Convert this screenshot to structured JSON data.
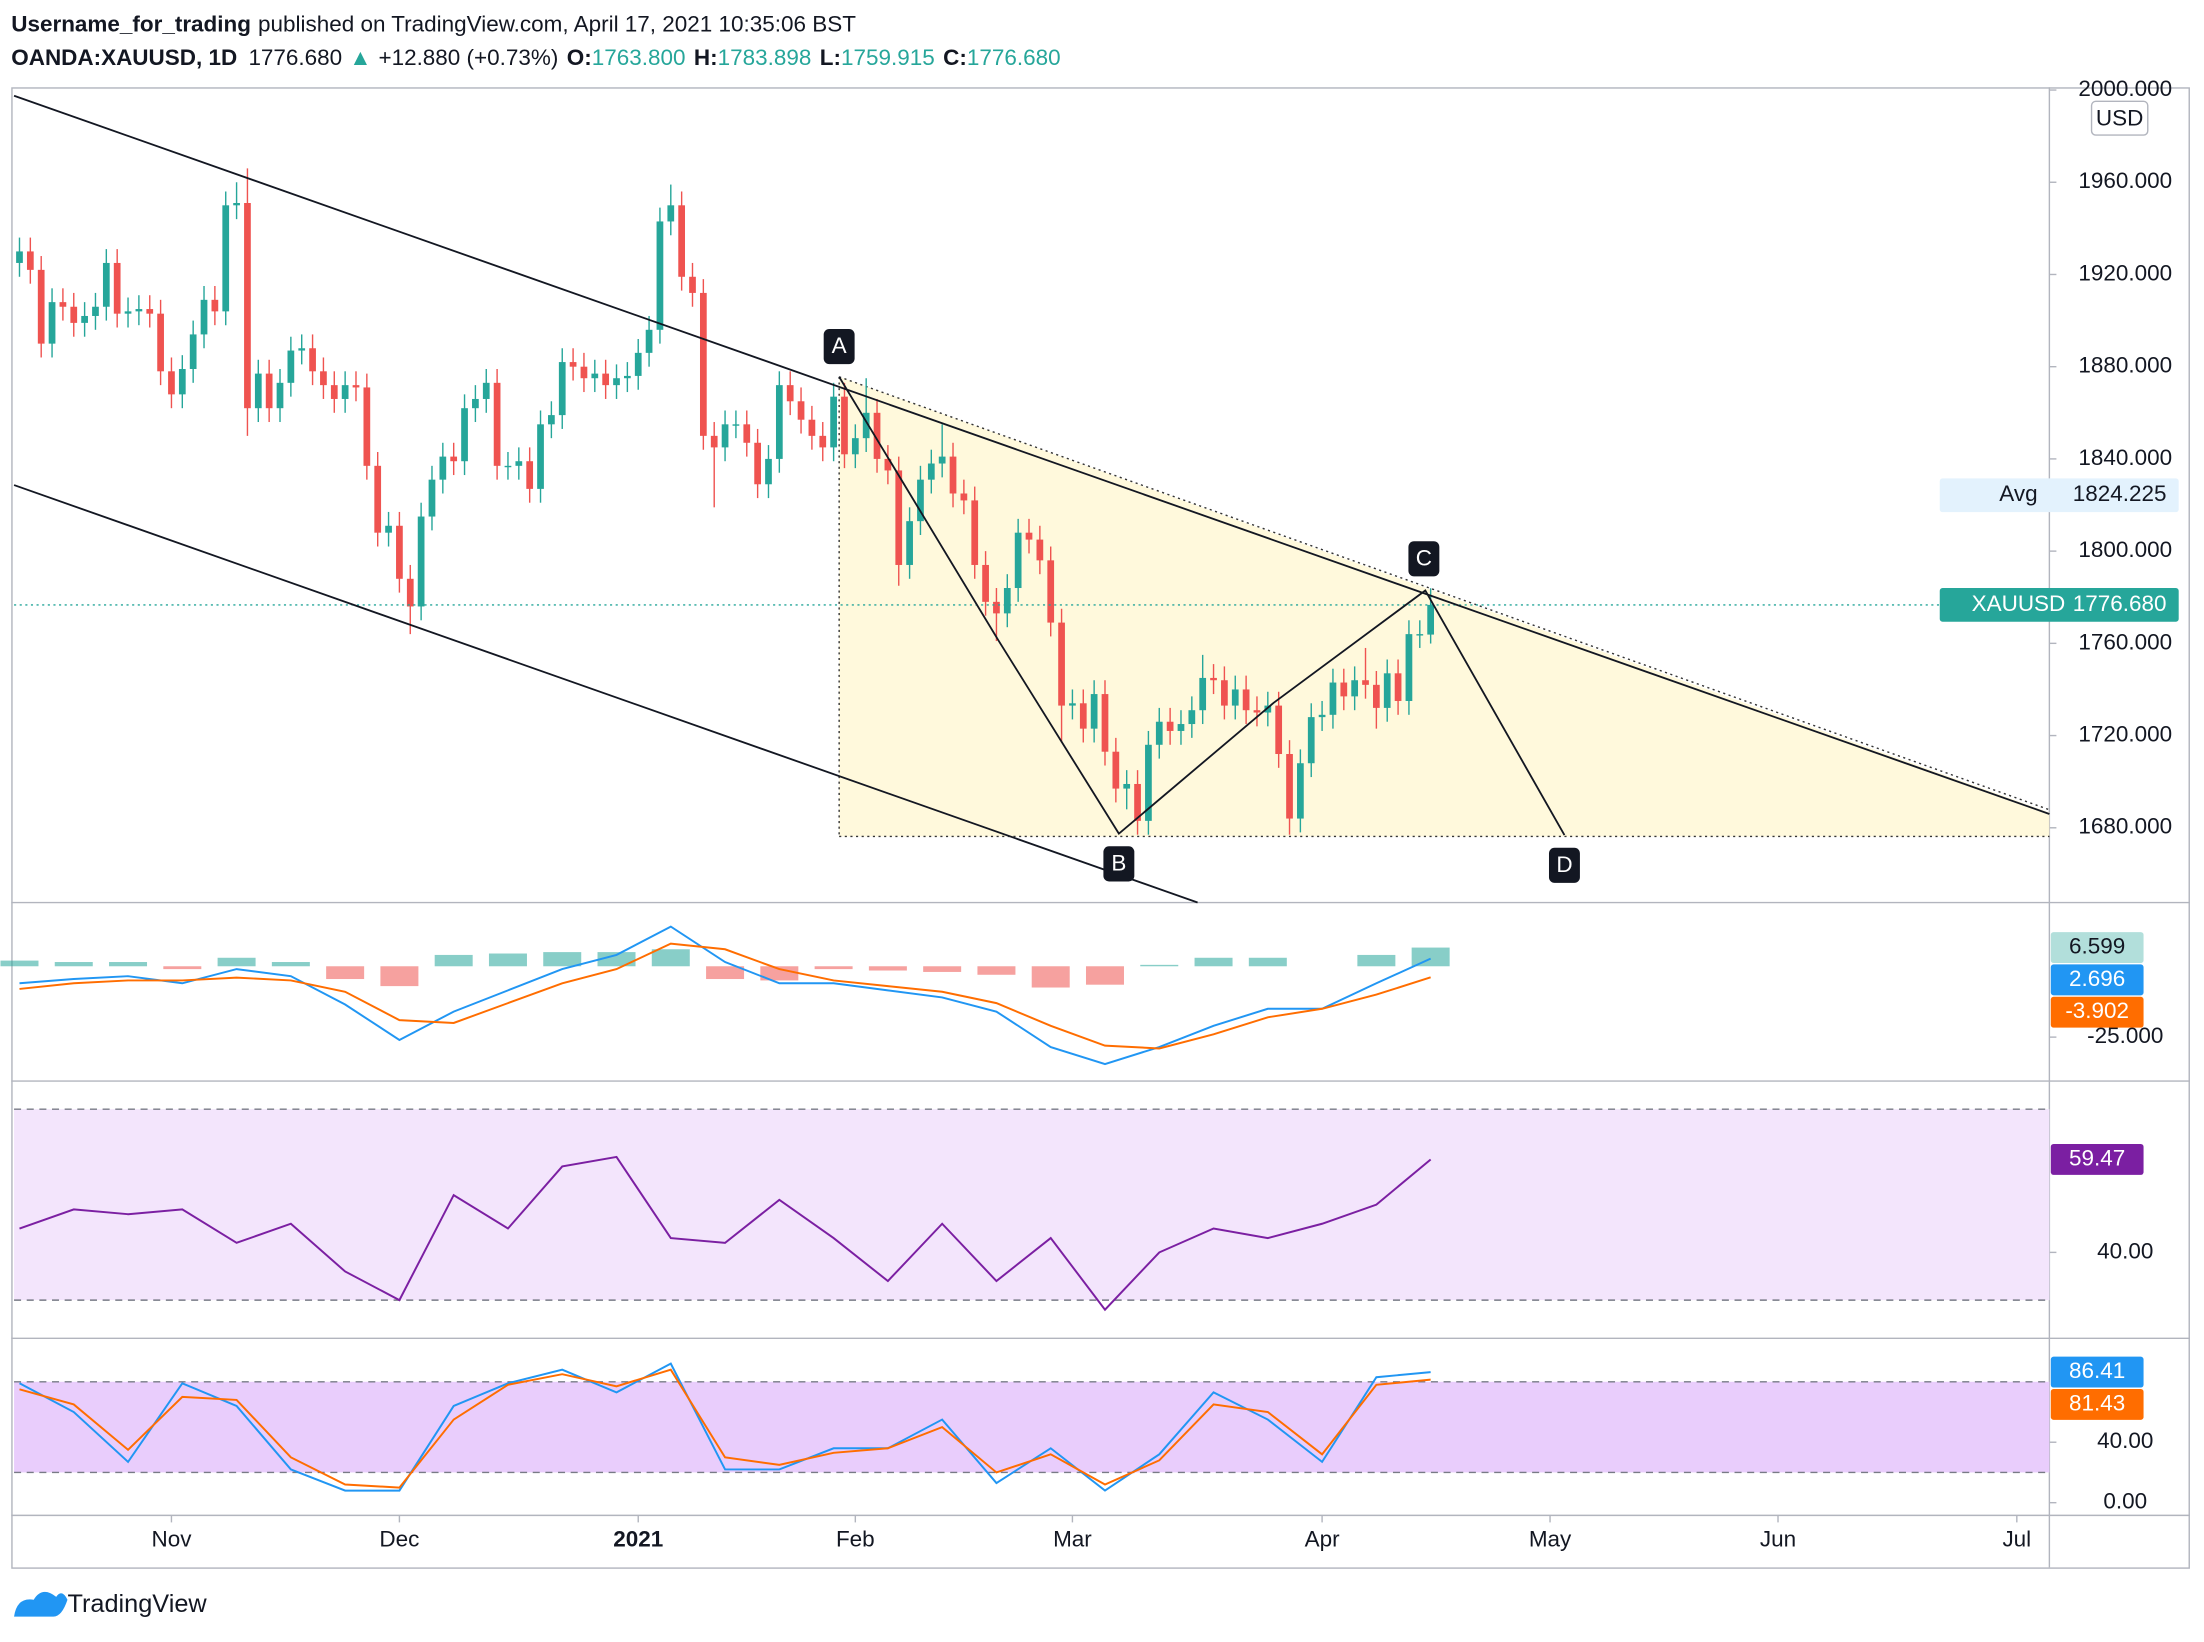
{
  "header": {
    "user": "Username_for_trading",
    "published": "published on TradingView.com, April 17, 2021 10:35:06 BST",
    "symbol": "OANDA:XAUUSD, 1D",
    "last": "1776.680",
    "arrow": "▲",
    "change": "+12.880 (+0.73%)",
    "o_label": "O:",
    "o": "1763.800",
    "h_label": "H:",
    "h": "1783.898",
    "l_label": "L:",
    "l": "1759.915",
    "c_label": "C:",
    "c": "1776.680"
  },
  "footer": "TradingView",
  "chart_data": [
    {
      "type": "candlestick",
      "currency": "USD",
      "up_color": "#26a69a",
      "down_color": "#ef5350",
      "annotations": [
        "A",
        "B",
        "C",
        "D"
      ],
      "xlim": [
        -0.5,
        187
      ],
      "xticks": [
        {
          "value": 14,
          "label": "Nov"
        },
        {
          "value": 35,
          "label": "Dec"
        },
        {
          "value": 57,
          "label": "2021"
        },
        {
          "value": 77,
          "label": "Feb"
        },
        {
          "value": 97,
          "label": "Mar"
        },
        {
          "value": 120,
          "label": "Apr"
        },
        {
          "value": 141,
          "label": "May"
        },
        {
          "value": 162,
          "label": "Jun"
        },
        {
          "value": 184,
          "label": "Jul"
        }
      ],
      "ylim": [
        1648.8,
        2001.2
      ],
      "yticks": [
        {
          "value": 1680,
          "label": "1680.000"
        },
        {
          "value": 1720,
          "label": "1720.000"
        },
        {
          "value": 1760,
          "label": "1760.000"
        },
        {
          "value": 1800,
          "label": "1800.000"
        },
        {
          "value": 1840,
          "label": "1840.000"
        },
        {
          "value": 1880,
          "label": "1880.000"
        },
        {
          "value": 1920,
          "label": "1920.000"
        },
        {
          "value": 1960,
          "label": "1960.000"
        },
        {
          "value": 2000,
          "label": "2000.000"
        }
      ],
      "price_lines": [
        {
          "label": "Avg",
          "value": 1824.225,
          "value_label": "1824.225",
          "color": "#e3f2fd",
          "text_color": "#131722",
          "line": false
        },
        {
          "label": "XAUUSD",
          "value": 1776.68,
          "value_label": "1776.680",
          "color": "#26a69a",
          "text_color": "#ffffff",
          "line": true
        }
      ],
      "open": [
        1925,
        1930,
        1922,
        1890,
        1908,
        1906,
        1899,
        1902,
        1906,
        1925,
        1903,
        1904,
        1905,
        1903,
        1878,
        1868,
        1879,
        1894,
        1909,
        1904,
        1950,
        1951,
        1862,
        1877,
        1862,
        1873,
        1887,
        1888,
        1878,
        1872,
        1866,
        1872,
        1871,
        1837,
        1808,
        1811,
        1788,
        1776,
        1815,
        1831,
        1841,
        1839,
        1862,
        1866,
        1873,
        1837,
        1837,
        1839,
        1827,
        1855,
        1859,
        1882,
        1880,
        1875,
        1877,
        1872,
        1875,
        1876,
        1886,
        1896,
        1943,
        1950,
        1919,
        1912,
        1850,
        1845,
        1855,
        1855,
        1847,
        1829,
        1840,
        1872,
        1865,
        1857,
        1850,
        1845,
        1867,
        1842,
        1849,
        1860,
        1840,
        1835,
        1794,
        1813,
        1831,
        1838,
        1841,
        1825,
        1822,
        1794,
        1778,
        1773,
        1784,
        1808,
        1805,
        1796,
        1769,
        1733,
        1734,
        1723,
        1738,
        1713,
        1697,
        1699,
        1683,
        1716,
        1726,
        1722,
        1725,
        1731,
        1745,
        1744,
        1733,
        1740,
        1731,
        1730,
        1733,
        1712,
        1684,
        1708,
        1728,
        1729,
        1743,
        1737,
        1744,
        1742,
        1732,
        1747,
        1735,
        1764,
        1763.8
      ],
      "high": [
        1936,
        1936,
        1928,
        1914,
        1914,
        1912,
        1908,
        1912,
        1931,
        1931,
        1910,
        1911,
        1911,
        1909,
        1884,
        1885,
        1900,
        1915,
        1915,
        1956,
        1960,
        1966,
        1883,
        1883,
        1879,
        1893,
        1894,
        1894,
        1884,
        1878,
        1878,
        1878,
        1877,
        1843,
        1817,
        1817,
        1794,
        1821,
        1837,
        1847,
        1847,
        1868,
        1872,
        1879,
        1879,
        1843,
        1845,
        1845,
        1861,
        1865,
        1888,
        1888,
        1886,
        1883,
        1883,
        1881,
        1882,
        1892,
        1902,
        1949,
        1959,
        1956,
        1925,
        1918,
        1856,
        1861,
        1861,
        1861,
        1853,
        1846,
        1878,
        1878,
        1871,
        1863,
        1856,
        1873,
        1873,
        1855,
        1875,
        1866,
        1846,
        1841,
        1819,
        1837,
        1844,
        1855,
        1847,
        1831,
        1828,
        1800,
        1784,
        1790,
        1814,
        1814,
        1811,
        1802,
        1775,
        1740,
        1740,
        1744,
        1744,
        1719,
        1705,
        1705,
        1722,
        1732,
        1732,
        1731,
        1737,
        1755,
        1751,
        1750,
        1746,
        1746,
        1737,
        1739,
        1739,
        1718,
        1714,
        1734,
        1735,
        1749,
        1749,
        1750,
        1758,
        1748,
        1753,
        1753,
        1770,
        1770,
        1783.898
      ],
      "low": [
        1919,
        1916,
        1884,
        1884,
        1900,
        1893,
        1893,
        1896,
        1900,
        1897,
        1897,
        1898,
        1897,
        1872,
        1862,
        1862,
        1873,
        1888,
        1898,
        1898,
        1944,
        1850,
        1856,
        1856,
        1856,
        1867,
        1881,
        1872,
        1866,
        1860,
        1860,
        1865,
        1831,
        1802,
        1802,
        1782,
        1764,
        1770,
        1809,
        1825,
        1833,
        1833,
        1856,
        1860,
        1831,
        1831,
        1831,
        1821,
        1821,
        1849,
        1853,
        1874,
        1869,
        1869,
        1866,
        1866,
        1869,
        1870,
        1880,
        1890,
        1937,
        1913,
        1906,
        1844,
        1819,
        1839,
        1849,
        1841,
        1823,
        1823,
        1834,
        1859,
        1851,
        1844,
        1839,
        1839,
        1836,
        1836,
        1843,
        1834,
        1829,
        1785,
        1788,
        1807,
        1825,
        1832,
        1819,
        1816,
        1788,
        1772,
        1761,
        1767,
        1778,
        1799,
        1790,
        1763,
        1717,
        1727,
        1717,
        1717,
        1707,
        1691,
        1688,
        1677,
        1677,
        1710,
        1716,
        1716,
        1719,
        1725,
        1738,
        1727,
        1727,
        1725,
        1724,
        1724,
        1706,
        1677,
        1678,
        1702,
        1722,
        1723,
        1731,
        1731,
        1736,
        1723,
        1726,
        1729,
        1729,
        1758,
        1759.915
      ],
      "close": [
        1930,
        1922,
        1890,
        1908,
        1906,
        1899,
        1902,
        1906,
        1925,
        1903,
        1904,
        1905,
        1903,
        1878,
        1868,
        1879,
        1894,
        1909,
        1904,
        1950,
        1951,
        1862,
        1877,
        1862,
        1873,
        1887,
        1888,
        1878,
        1872,
        1866,
        1872,
        1871,
        1837,
        1808,
        1811,
        1788,
        1776,
        1815,
        1831,
        1841,
        1839,
        1862,
        1866,
        1873,
        1837,
        1837,
        1839,
        1827,
        1855,
        1859,
        1882,
        1880,
        1875,
        1877,
        1872,
        1875,
        1876,
        1886,
        1896,
        1943,
        1950,
        1919,
        1912,
        1850,
        1845,
        1855,
        1855,
        1847,
        1829,
        1840,
        1872,
        1865,
        1857,
        1850,
        1845,
        1867,
        1842,
        1849,
        1860,
        1840,
        1835,
        1794,
        1813,
        1831,
        1838,
        1841,
        1825,
        1822,
        1794,
        1778,
        1773,
        1784,
        1808,
        1805,
        1796,
        1769,
        1733,
        1734,
        1723,
        1738,
        1713,
        1697,
        1699,
        1683,
        1716,
        1726,
        1722,
        1725,
        1731,
        1745,
        1744,
        1733,
        1740,
        1731,
        1730,
        1733,
        1712,
        1684,
        1708,
        1728,
        1729,
        1743,
        1737,
        1744,
        1742,
        1732,
        1747,
        1735,
        1764,
        1764,
        1776.68
      ]
    },
    {
      "type": "macd",
      "ylim": [
        -40,
        21.5
      ],
      "yticks": [
        {
          "value": -25,
          "label": "-25.000"
        }
      ],
      "x": [
        0,
        5,
        10,
        15,
        20,
        25,
        30,
        35,
        40,
        45,
        50,
        55,
        60,
        65,
        70,
        75,
        80,
        85,
        90,
        95,
        100,
        105,
        110,
        115,
        120,
        125,
        130
      ],
      "histogram": {
        "up_color": "#26a69a",
        "down_color": "#ef5350",
        "label_color": "#b2dfdb",
        "label_text_color": "#131722",
        "last_label": "6.599",
        "values": [
          2,
          1.5,
          1.5,
          -1,
          3,
          1.5,
          -4.5,
          -7,
          4,
          4.5,
          5,
          5,
          6,
          -4.5,
          -5,
          -1,
          -1.5,
          -2,
          -3,
          -7.5,
          -6.5,
          0.5,
          3,
          3,
          0,
          4,
          6.599
        ]
      },
      "series": [
        {
          "color": "#2196f3",
          "last_label": "2.696",
          "values": [
            -6,
            -4.5,
            -3.5,
            -6,
            -1,
            -3.5,
            -13.5,
            -26,
            -16,
            -8.5,
            -1,
            4,
            14,
            1.5,
            -6,
            -6,
            -8.5,
            -11,
            -16,
            -28.5,
            -34.5,
            -28.5,
            -21,
            -15,
            -15,
            -6,
            2.696
          ]
        },
        {
          "color": "#ff6d00",
          "last_label": "-3.902",
          "values": [
            -8,
            -6,
            -5,
            -5,
            -4,
            -5,
            -9,
            -19,
            -20,
            -13,
            -6,
            -1,
            8,
            6,
            -1,
            -5,
            -7,
            -9,
            -13,
            -21,
            -28,
            -29,
            -24,
            -18,
            -15,
            -10,
            -3.902
          ]
        }
      ]
    },
    {
      "type": "rsi",
      "ylim": [
        22.6,
        75.6
      ],
      "yticks": [
        {
          "value": 40,
          "label": "40.00"
        }
      ],
      "bands": [
        30,
        70
      ],
      "band_color": "#f3e5fc",
      "x": [
        0,
        5,
        10,
        15,
        20,
        25,
        30,
        35,
        40,
        45,
        50,
        55,
        60,
        65,
        70,
        75,
        80,
        85,
        90,
        95,
        100,
        105,
        110,
        115,
        120,
        125,
        130
      ],
      "series": [
        {
          "color": "#7b1fa2",
          "last_label": "59.47",
          "values": [
            45,
            49,
            48,
            49,
            42,
            46,
            36,
            30,
            52,
            45,
            58,
            60,
            43,
            42,
            51,
            43,
            34,
            46,
            34,
            43,
            28,
            40,
            45,
            43,
            46,
            50,
            59.47
          ]
        }
      ]
    },
    {
      "type": "stochastic",
      "ylim": [
        -8.4,
        106
      ],
      "yticks": [
        {
          "value": 0,
          "label": "0.00"
        },
        {
          "value": 40,
          "label": "40.00"
        }
      ],
      "bands": [
        20,
        80
      ],
      "band_color": "#e9cdfc",
      "x": [
        0,
        5,
        10,
        15,
        20,
        25,
        30,
        35,
        40,
        45,
        50,
        55,
        60,
        65,
        70,
        75,
        80,
        85,
        90,
        95,
        100,
        105,
        110,
        115,
        120,
        125,
        130
      ],
      "series": [
        {
          "color": "#2196f3",
          "last_label": "86.41",
          "values": [
            79,
            60,
            27,
            79,
            64,
            22,
            8,
            8,
            64,
            79,
            88,
            73,
            92,
            22,
            22,
            36,
            36,
            55,
            13,
            36,
            8,
            32,
            73,
            55,
            27,
            83,
            86.41
          ]
        },
        {
          "color": "#ff6d00",
          "last_label": "81.43",
          "values": [
            75,
            65,
            35,
            70,
            68,
            30,
            12,
            10,
            55,
            78,
            85,
            77,
            88,
            30,
            25,
            33,
            36,
            50,
            20,
            32,
            12,
            28,
            65,
            60,
            32,
            78,
            81.43
          ]
        }
      ]
    }
  ]
}
